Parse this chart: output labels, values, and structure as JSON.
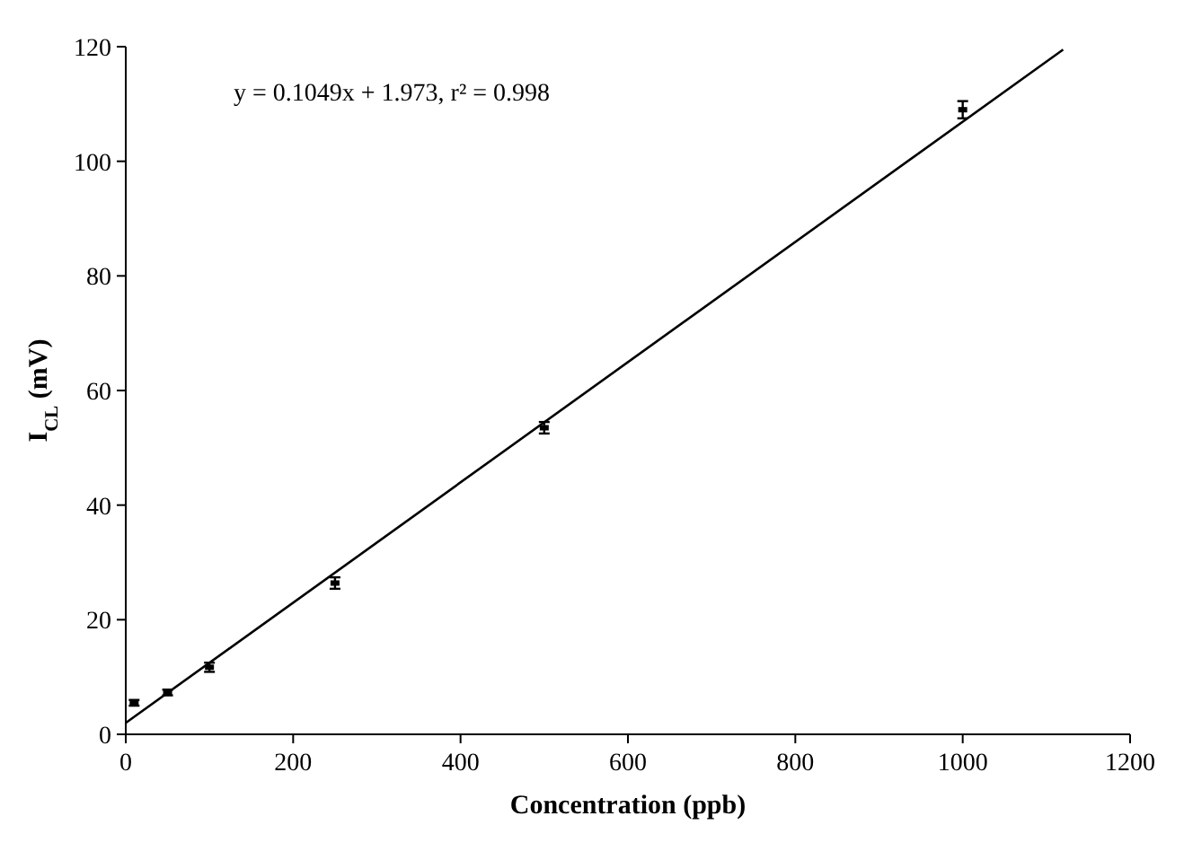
{
  "chart_data": {
    "type": "scatter",
    "xlabel": "Concentration (ppb)",
    "ylabel": "I$_{CL}$ (mV)",
    "annotations": [
      "y = 0.1049x + 1.973,   r² = 0.998"
    ],
    "xlim": [
      0,
      1200
    ],
    "ylim": [
      0,
      120
    ],
    "xticks": [
      0,
      200,
      400,
      600,
      800,
      1000,
      1200
    ],
    "yticks": [
      0,
      20,
      40,
      60,
      80,
      100,
      120
    ],
    "grid": false,
    "series": [
      {
        "color": "#000000",
        "marker": "square",
        "x": [
          10,
          50,
          100,
          250,
          500,
          1000
        ],
        "values": [
          5.5,
          7.3,
          11.7,
          26.4,
          53.5,
          109
        ],
        "errors": [
          0.5,
          0.5,
          0.8,
          1,
          1,
          1.5
        ]
      },
      {
        "type": "line",
        "color": "#000000",
        "x": [
          0,
          1120
        ],
        "values": [
          2,
          119.5
        ],
        "line_style": "solid"
      }
    ]
  }
}
